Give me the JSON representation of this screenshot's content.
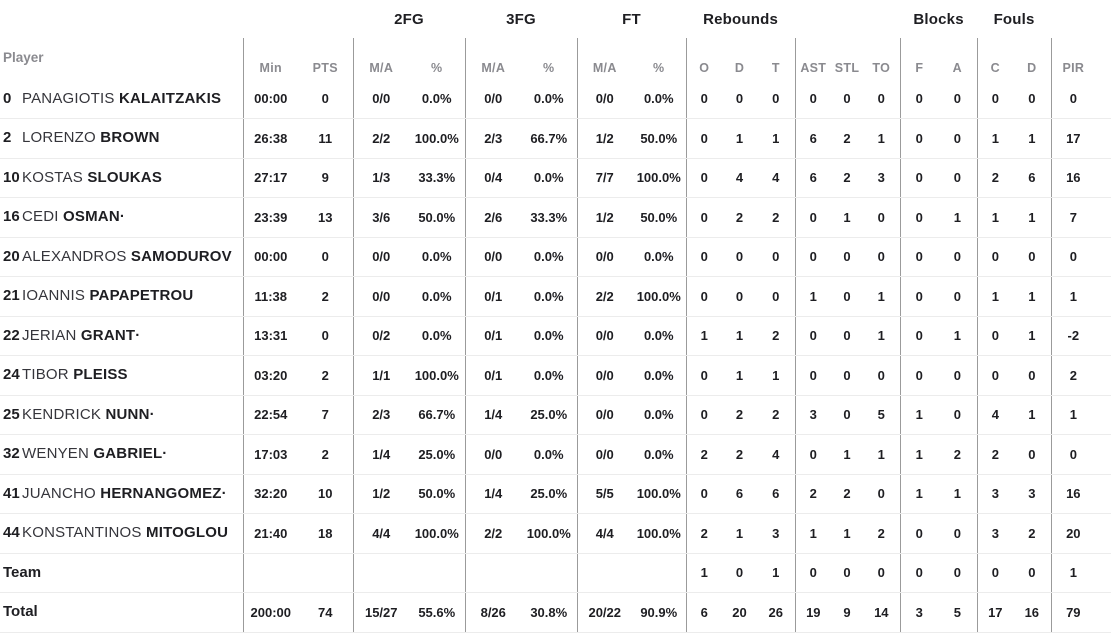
{
  "table": {
    "player_col_header": "Player",
    "group_headers": {
      "fg2": "2FG",
      "fg3": "3FG",
      "ft": "FT",
      "rebounds": "Rebounds",
      "blocks": "Blocks",
      "fouls": "Fouls"
    },
    "col_headers": {
      "min": "Min",
      "pts": "PTS",
      "ma": "M/A",
      "pct": "%",
      "reb_o": "O",
      "reb_d": "D",
      "reb_t": "T",
      "ast": "AST",
      "stl": "STL",
      "to": "TO",
      "blk_f": "F",
      "blk_a": "A",
      "foul_c": "C",
      "foul_d": "D",
      "pir": "PIR"
    },
    "stat_keys": [
      "min",
      "pts",
      "fg2-ma",
      "fg2-pct",
      "fg3-ma",
      "fg3-pct",
      "ft-ma",
      "ft-pct",
      "reb-o",
      "reb-d",
      "reb-t",
      "ast",
      "stl",
      "to",
      "blk-f",
      "blk-a",
      "foul-c",
      "foul-d",
      "pir"
    ],
    "rows": [
      {
        "type": "player",
        "number": "0",
        "first": "PANAGIOTIS",
        "last": "KALAITZAKIS",
        "stats": [
          "00:00",
          "0",
          "0/0",
          "0.0%",
          "0/0",
          "0.0%",
          "0/0",
          "0.0%",
          "0",
          "0",
          "0",
          "0",
          "0",
          "0",
          "0",
          "0",
          "0",
          "0",
          "0"
        ]
      },
      {
        "type": "player",
        "number": "2",
        "first": "LORENZO",
        "last": "BROWN",
        "stats": [
          "26:38",
          "11",
          "2/2",
          "100.0%",
          "2/3",
          "66.7%",
          "1/2",
          "50.0%",
          "0",
          "1",
          "1",
          "6",
          "2",
          "1",
          "0",
          "0",
          "1",
          "1",
          "17"
        ]
      },
      {
        "type": "player",
        "number": "10",
        "first": "KOSTAS",
        "last": "SLOUKAS",
        "stats": [
          "27:17",
          "9",
          "1/3",
          "33.3%",
          "0/4",
          "0.0%",
          "7/7",
          "100.0%",
          "0",
          "4",
          "4",
          "6",
          "2",
          "3",
          "0",
          "0",
          "2",
          "6",
          "16"
        ]
      },
      {
        "type": "player",
        "number": "16",
        "first": "CEDI",
        "last": "OSMAN·",
        "stats": [
          "23:39",
          "13",
          "3/6",
          "50.0%",
          "2/6",
          "33.3%",
          "1/2",
          "50.0%",
          "0",
          "2",
          "2",
          "0",
          "1",
          "0",
          "0",
          "1",
          "1",
          "1",
          "7"
        ]
      },
      {
        "type": "player",
        "number": "20",
        "first": "ALEXANDROS",
        "last": "SAMODUROV",
        "stats": [
          "00:00",
          "0",
          "0/0",
          "0.0%",
          "0/0",
          "0.0%",
          "0/0",
          "0.0%",
          "0",
          "0",
          "0",
          "0",
          "0",
          "0",
          "0",
          "0",
          "0",
          "0",
          "0"
        ]
      },
      {
        "type": "player",
        "number": "21",
        "first": "IOANNIS",
        "last": "PAPAPETROU",
        "stats": [
          "11:38",
          "2",
          "0/0",
          "0.0%",
          "0/1",
          "0.0%",
          "2/2",
          "100.0%",
          "0",
          "0",
          "0",
          "1",
          "0",
          "1",
          "0",
          "0",
          "1",
          "1",
          "1"
        ]
      },
      {
        "type": "player",
        "number": "22",
        "first": "JERIAN",
        "last": "GRANT·",
        "stats": [
          "13:31",
          "0",
          "0/2",
          "0.0%",
          "0/1",
          "0.0%",
          "0/0",
          "0.0%",
          "1",
          "1",
          "2",
          "0",
          "0",
          "1",
          "0",
          "1",
          "0",
          "1",
          "-2"
        ]
      },
      {
        "type": "player",
        "number": "24",
        "first": "TIBOR",
        "last": "PLEISS",
        "stats": [
          "03:20",
          "2",
          "1/1",
          "100.0%",
          "0/1",
          "0.0%",
          "0/0",
          "0.0%",
          "0",
          "1",
          "1",
          "0",
          "0",
          "0",
          "0",
          "0",
          "0",
          "0",
          "2"
        ]
      },
      {
        "type": "player",
        "number": "25",
        "first": "KENDRICK",
        "last": "NUNN·",
        "stats": [
          "22:54",
          "7",
          "2/3",
          "66.7%",
          "1/4",
          "25.0%",
          "0/0",
          "0.0%",
          "0",
          "2",
          "2",
          "3",
          "0",
          "5",
          "1",
          "0",
          "4",
          "1",
          "1"
        ]
      },
      {
        "type": "player",
        "number": "32",
        "first": "WENYEN",
        "last": "GABRIEL·",
        "stats": [
          "17:03",
          "2",
          "1/4",
          "25.0%",
          "0/0",
          "0.0%",
          "0/0",
          "0.0%",
          "2",
          "2",
          "4",
          "0",
          "1",
          "1",
          "1",
          "2",
          "2",
          "0",
          "0"
        ]
      },
      {
        "type": "player",
        "number": "41",
        "first": "JUANCHO",
        "last": "HERNANGOMEZ·",
        "stats": [
          "32:20",
          "10",
          "1/2",
          "50.0%",
          "1/4",
          "25.0%",
          "5/5",
          "100.0%",
          "0",
          "6",
          "6",
          "2",
          "2",
          "0",
          "1",
          "1",
          "3",
          "3",
          "16"
        ]
      },
      {
        "type": "player",
        "number": "44",
        "first": "KONSTANTINOS",
        "last": "MITOGLOU",
        "stats": [
          "21:40",
          "18",
          "4/4",
          "100.0%",
          "2/2",
          "100.0%",
          "4/4",
          "100.0%",
          "2",
          "1",
          "3",
          "1",
          "1",
          "2",
          "0",
          "0",
          "3",
          "2",
          "20"
        ]
      },
      {
        "type": "team",
        "label": "Team",
        "stats": [
          "",
          "",
          "",
          "",
          "",
          "",
          "",
          "",
          "1",
          "0",
          "1",
          "0",
          "0",
          "0",
          "0",
          "0",
          "0",
          "0",
          "1"
        ]
      },
      {
        "type": "total",
        "label": "Total",
        "stats": [
          "200:00",
          "74",
          "15/27",
          "55.6%",
          "8/26",
          "30.8%",
          "20/22",
          "90.9%",
          "6",
          "20",
          "26",
          "19",
          "9",
          "14",
          "3",
          "5",
          "17",
          "16",
          "79"
        ]
      }
    ]
  },
  "colors": {
    "text_dark": "#1e1e22",
    "text_gray": "#8a8a8f",
    "line_vertical": "#9b9b9b",
    "line_horizontal": "#ececec"
  }
}
